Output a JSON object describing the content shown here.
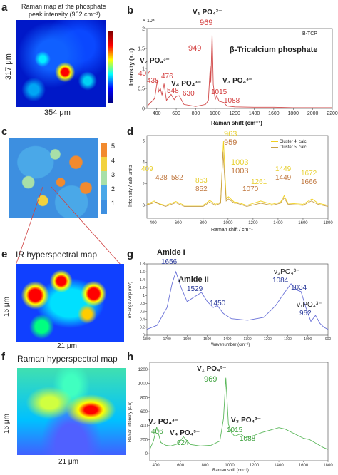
{
  "panels": {
    "a": {
      "label": "a",
      "title_line1": "Raman map at the phosphate",
      "title_line2": "peak intensity (962 cm⁻¹)",
      "x_scale": "354 μm",
      "y_scale": "317 μm"
    },
    "b": {
      "label": "b",
      "title": "β-Tricalcium phosphate",
      "legend": "B-TCP",
      "exponent": "× 10⁴",
      "ylabel": "Intensity (a.u)",
      "xlabel": "Raman shift (cm⁻¹)",
      "labels": {
        "v1": "V₁ PO₄³⁻",
        "v2": "V₂ PO₄³⁻",
        "v3": "V₃ PO₄³⁻",
        "v4": "V₄ PO₄³⁻"
      },
      "peaks": [
        "969",
        "949",
        "407",
        "438",
        "476",
        "548",
        "630",
        "1015",
        "1088"
      ]
    },
    "c": {
      "label": "c",
      "colorbar_ticks": [
        "5",
        "4",
        "3",
        "2",
        "1"
      ]
    },
    "d": {
      "label": "d",
      "ylabel": "Intensity / arb units",
      "xlabel": "Raman shift / cm⁻¹",
      "legend": [
        "Cluster 4: calc",
        "Cluster 5: calc"
      ],
      "peaks_c4": [
        "409",
        "853",
        "963",
        "1003",
        "1261",
        "1449",
        "1672"
      ],
      "peaks_c5": [
        "428",
        "582",
        "852",
        "959",
        "1003",
        "1070",
        "1449",
        "1666"
      ]
    },
    "e": {
      "label": "e",
      "title": "IR hyperspectral map",
      "x_scale": "21 μm",
      "y_scale": "16 μm"
    },
    "f": {
      "label": "f",
      "title": "Raman hyperspectral map",
      "x_scale": "21 μm",
      "y_scale": "16 μm"
    },
    "g": {
      "label": "g",
      "ylabel": "mRange Amp (mV)",
      "xlabel": "Wavenumber (cm⁻¹)",
      "band_labels": {
        "amide1": "Amide I",
        "amide2": "Amide II",
        "v3": "ν₃PO₄³⁻",
        "v1": "ν₁PO₄³⁻"
      },
      "peaks": [
        "1656",
        "1529",
        "1450",
        "1084",
        "1034",
        "962"
      ]
    },
    "h": {
      "label": "h",
      "ylabel": "Raman intensity (a.u)",
      "xlabel": "Raman shift (cm⁻¹)",
      "labels": {
        "v1": "V₁ PO₄³⁻",
        "v2": "V₂ PO₄³⁻",
        "v3": "V₃ PO₄³⁻",
        "v4": "V₄ PO₄³⁻"
      },
      "peaks": [
        "969",
        "406",
        "624",
        "1015",
        "1088"
      ]
    }
  },
  "chart_data": [
    {
      "id": "b",
      "type": "line",
      "xlim": [
        300,
        2200
      ],
      "ylim": [
        0,
        2.0
      ],
      "xticks": [
        400,
        600,
        800,
        1000,
        1200,
        1400,
        1600,
        1800,
        2000,
        2200
      ],
      "yticks": [
        0,
        0.5,
        1.0,
        1.5,
        2.0
      ],
      "x": [
        300,
        380,
        407,
        420,
        438,
        455,
        476,
        500,
        548,
        580,
        600,
        630,
        680,
        800,
        900,
        930,
        949,
        955,
        969,
        980,
        1000,
        1015,
        1040,
        1088,
        1120,
        1200,
        1400,
        1600,
        1800,
        2000,
        2200
      ],
      "y": [
        0.05,
        0.25,
        0.7,
        0.42,
        0.5,
        0.33,
        0.62,
        0.2,
        0.35,
        0.22,
        0.3,
        0.32,
        0.1,
        0.05,
        0.1,
        0.2,
        1.05,
        0.65,
        1.88,
        0.6,
        0.22,
        0.32,
        0.18,
        0.15,
        0.06,
        0.04,
        0.03,
        0.03,
        0.02,
        0.02,
        0.02
      ]
    },
    {
      "id": "d",
      "type": "line",
      "xlim": [
        350,
        1800
      ],
      "ylim": [
        -1.2,
        6.5
      ],
      "xticks": [
        400,
        600,
        800,
        1000,
        1200,
        1400,
        1600,
        1800
      ],
      "yticks": [
        0,
        2,
        4,
        6
      ],
      "series": [
        {
          "name": "Cluster 4: calc",
          "x": [
            350,
            409,
            430,
            500,
            582,
            650,
            800,
            853,
            900,
            940,
            963,
            985,
            1003,
            1050,
            1070,
            1150,
            1261,
            1350,
            1420,
            1449,
            1480,
            1600,
            1672,
            1720,
            1800
          ],
          "y": [
            0.1,
            0.4,
            0.2,
            0.0,
            0.35,
            0.0,
            0.0,
            0.45,
            0.1,
            0.3,
            6.0,
            0.6,
            0.8,
            0.3,
            0.3,
            0.0,
            0.4,
            0.1,
            0.3,
            0.9,
            0.2,
            0.1,
            0.6,
            0.2,
            0.0
          ]
        },
        {
          "name": "Cluster 5: calc",
          "x": [
            350,
            428,
            450,
            500,
            582,
            650,
            800,
            852,
            900,
            940,
            959,
            985,
            1003,
            1050,
            1070,
            1150,
            1261,
            1350,
            1420,
            1449,
            1480,
            1600,
            1666,
            1720,
            1800
          ],
          "y": [
            0.05,
            0.3,
            0.1,
            -0.1,
            0.25,
            -0.1,
            -0.1,
            0.3,
            0.0,
            0.2,
            5.0,
            0.4,
            0.6,
            0.2,
            0.2,
            -0.1,
            0.2,
            0.0,
            0.2,
            0.7,
            0.1,
            0.0,
            0.4,
            0.1,
            -0.1
          ]
        }
      ]
    },
    {
      "id": "g",
      "type": "line",
      "xlim": [
        1800,
        900
      ],
      "ylim": [
        0,
        1.8
      ],
      "xticks": [
        1800,
        1700,
        1600,
        1500,
        1400,
        1300,
        1200,
        1100,
        1000,
        900
      ],
      "yticks": [
        0,
        0.2,
        0.4,
        0.6,
        0.8,
        1.0,
        1.2,
        1.4,
        1.6,
        1.8
      ],
      "x": [
        1800,
        1750,
        1700,
        1675,
        1656,
        1630,
        1600,
        1570,
        1529,
        1500,
        1470,
        1450,
        1420,
        1380,
        1300,
        1220,
        1160,
        1120,
        1084,
        1060,
        1034,
        1010,
        985,
        962,
        940,
        920,
        900
      ],
      "y": [
        0.15,
        0.25,
        0.7,
        1.3,
        1.6,
        1.2,
        0.85,
        0.95,
        1.08,
        0.85,
        0.7,
        0.75,
        0.55,
        0.42,
        0.38,
        0.45,
        0.75,
        1.05,
        1.3,
        1.15,
        1.1,
        0.7,
        0.35,
        0.5,
        0.3,
        0.2,
        0.15
      ]
    },
    {
      "id": "h",
      "type": "line",
      "xlim": [
        350,
        1800
      ],
      "ylim": [
        -100,
        1300
      ],
      "xticks": [
        400,
        600,
        800,
        1000,
        1200,
        1400,
        1600,
        1800
      ],
      "yticks": [
        0,
        200,
        400,
        600,
        800,
        1000,
        1200
      ],
      "x": [
        350,
        380,
        406,
        440,
        480,
        520,
        580,
        624,
        680,
        760,
        850,
        920,
        950,
        969,
        990,
        1015,
        1040,
        1088,
        1130,
        1200,
        1260,
        1320,
        1400,
        1450,
        1520,
        1600,
        1650,
        1700,
        1760,
        1800
      ],
      "y": [
        60,
        180,
        380,
        160,
        120,
        110,
        140,
        240,
        130,
        110,
        120,
        180,
        500,
        1080,
        420,
        300,
        250,
        280,
        230,
        260,
        300,
        330,
        370,
        350,
        290,
        220,
        200,
        150,
        90,
        60
      ]
    }
  ]
}
